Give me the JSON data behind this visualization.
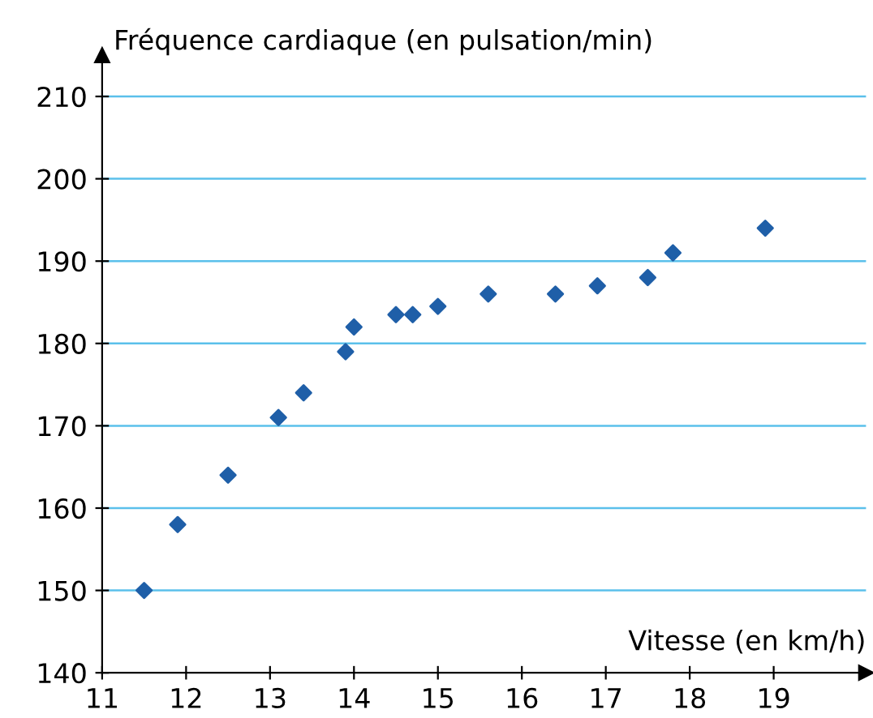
{
  "chart_data": {
    "type": "scatter",
    "xlabel": "Vitesse (en km/h)",
    "ylabel": "Fréquence cardiaque (en pulsation/min)",
    "x": [
      11.5,
      11.9,
      12.5,
      13.1,
      13.4,
      13.9,
      14.0,
      14.5,
      14.7,
      15.0,
      15.6,
      16.4,
      16.9,
      17.5,
      17.8,
      18.9
    ],
    "series": [
      {
        "color": "#1f5fa8",
        "values": [
          150,
          158,
          164,
          171,
          174,
          179,
          182,
          183.5,
          183.5,
          184.5,
          186,
          186,
          187,
          188,
          191,
          194
        ]
      }
    ],
    "marker": "diamond",
    "grid": "y",
    "xlim": [
      11,
      20.1
    ],
    "ylim": [
      140,
      215
    ],
    "xticks": [
      11,
      12,
      13,
      14,
      15,
      16,
      17,
      18,
      19
    ],
    "yticks": [
      140,
      150,
      160,
      170,
      180,
      190,
      200,
      210
    ]
  }
}
